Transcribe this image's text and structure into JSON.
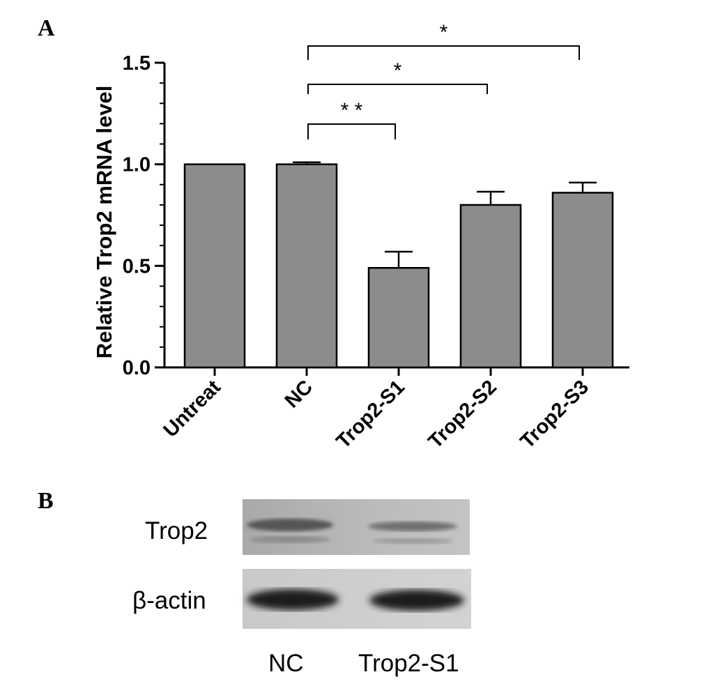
{
  "panel_a_label": "A",
  "panel_b_label": "B",
  "chart_data": {
    "type": "bar",
    "categories": [
      "Untreat",
      "NC",
      "Trop2-S1",
      "Trop2-S2",
      "Trop2-S3"
    ],
    "values": [
      1.0,
      1.0,
      0.49,
      0.8,
      0.86
    ],
    "errors": [
      0.0,
      0.01,
      0.08,
      0.065,
      0.05
    ],
    "ylabel": "Relative Trop2 mRNA level",
    "ylim": [
      0,
      1.5
    ],
    "yticks": [
      0.0,
      0.5,
      1.0,
      1.5
    ],
    "ytick_labels": [
      "0.0",
      "0.5",
      "1.0",
      "1.5"
    ],
    "bar_color": "#8c8c8c",
    "significance": [
      {
        "from": "NC",
        "to": "Trop2-S1",
        "label": "* *"
      },
      {
        "from": "NC",
        "to": "Trop2-S2",
        "label": "*"
      },
      {
        "from": "NC",
        "to": "Trop2-S3",
        "label": "*"
      }
    ]
  },
  "blot": {
    "rows": [
      "Trop2",
      "β-actin"
    ],
    "lanes": [
      "NC",
      "Trop2-S1"
    ]
  }
}
